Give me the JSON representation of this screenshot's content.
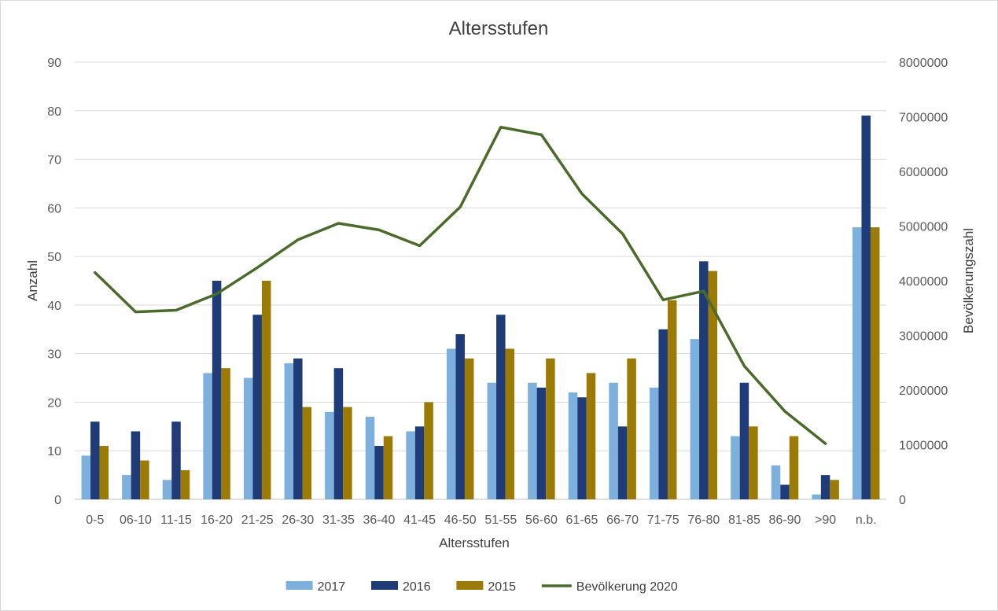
{
  "chart_data": {
    "type": "bar",
    "title": "Altersstufen",
    "xlabel": "Altersstufen",
    "ylabel": "Anzahl",
    "y2label": "Bevölkerungszahl",
    "ylim": [
      0,
      90
    ],
    "y2lim": [
      0,
      8000000
    ],
    "yticks": [
      "0",
      "10",
      "20",
      "30",
      "40",
      "50",
      "60",
      "70",
      "80",
      "90"
    ],
    "y2ticks": [
      "0",
      "1000000",
      "2000000",
      "3000000",
      "4000000",
      "5000000",
      "6000000",
      "7000000",
      "8000000"
    ],
    "grid": true,
    "legend_position": "bottom",
    "categories": [
      "0-5",
      "06-10",
      "11-15",
      "16-20",
      "21-25",
      "26-30",
      "31-35",
      "36-40",
      "41-45",
      "46-50",
      "51-55",
      "56-60",
      "61-65",
      "66-70",
      "71-75",
      "76-80",
      "81-85",
      "86-90",
      ">90",
      "n.b."
    ],
    "series": [
      {
        "name": "2017",
        "type": "bar",
        "color": "#7eb0dd",
        "values": [
          9,
          5,
          4,
          26,
          25,
          28,
          18,
          17,
          14,
          31,
          24,
          24,
          22,
          24,
          23,
          33,
          13,
          7,
          1,
          56
        ]
      },
      {
        "name": "2016",
        "type": "bar",
        "color": "#1f3c78",
        "values": [
          16,
          14,
          16,
          45,
          38,
          29,
          27,
          11,
          15,
          34,
          38,
          23,
          21,
          15,
          35,
          49,
          24,
          3,
          5,
          79
        ]
      },
      {
        "name": "2015",
        "type": "bar",
        "color": "#9c7a06",
        "values": [
          11,
          8,
          6,
          27,
          45,
          19,
          19,
          13,
          20,
          29,
          31,
          29,
          26,
          29,
          41,
          47,
          15,
          13,
          4,
          56
        ]
      },
      {
        "name": "Bevölkerung 2020",
        "type": "line",
        "axis": "y2",
        "color": "#4a6b2a",
        "values": [
          4150000,
          3430000,
          3460000,
          3760000,
          4240000,
          4750000,
          5050000,
          4930000,
          4640000,
          5350000,
          6810000,
          6670000,
          5590000,
          4860000,
          3650000,
          3810000,
          2440000,
          1610000,
          1020000,
          null
        ]
      }
    ]
  }
}
